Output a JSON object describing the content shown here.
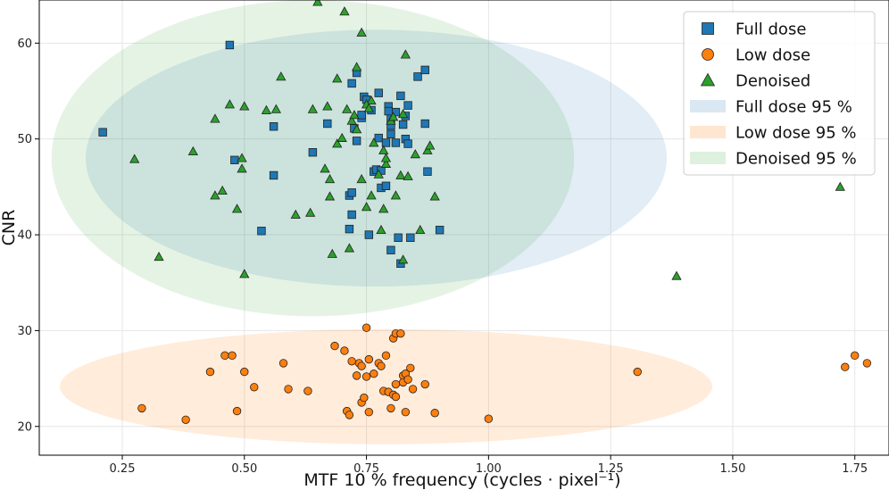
{
  "chart_data": {
    "type": "scatter",
    "xlabel": "MTF 10 % frequency (cycles · pixel⁻¹)",
    "ylabel": "CNR",
    "xlim": [
      0.08,
      1.82
    ],
    "ylim": [
      17,
      64.5
    ],
    "xticks": [
      0.25,
      0.5,
      0.75,
      1.0,
      1.25,
      1.5,
      1.75
    ],
    "xtick_labels": [
      "0.25",
      "0.50",
      "0.75",
      "1.00",
      "1.25",
      "1.50",
      "1.75"
    ],
    "yticks": [
      20,
      30,
      40,
      50,
      60
    ],
    "ytick_labels": [
      "20",
      "30",
      "40",
      "50",
      "60"
    ],
    "grid": true,
    "legend_position": "top-right",
    "series": [
      {
        "name": "Full dose",
        "marker": "square",
        "color": "#1f77b4",
        "points": [
          [
            0.21,
            50.7
          ],
          [
            0.47,
            59.8
          ],
          [
            0.48,
            47.8
          ],
          [
            0.535,
            40.4
          ],
          [
            0.56,
            51.3
          ],
          [
            0.56,
            46.2
          ],
          [
            0.64,
            48.6
          ],
          [
            0.67,
            51.6
          ],
          [
            0.715,
            44.1
          ],
          [
            0.715,
            40.6
          ],
          [
            0.72,
            42.1
          ],
          [
            0.72,
            44.4
          ],
          [
            0.725,
            51.1
          ],
          [
            0.73,
            49.8
          ],
          [
            0.74,
            52.2
          ],
          [
            0.74,
            52.5
          ],
          [
            0.745,
            54.4
          ],
          [
            0.75,
            54.1
          ],
          [
            0.76,
            53.0
          ],
          [
            0.755,
            40.0
          ],
          [
            0.765,
            46.6
          ],
          [
            0.77,
            46.8
          ],
          [
            0.775,
            54.8
          ],
          [
            0.775,
            50.1
          ],
          [
            0.78,
            44.9
          ],
          [
            0.78,
            46.7
          ],
          [
            0.79,
            49.6
          ],
          [
            0.79,
            45.1
          ],
          [
            0.795,
            53.4
          ],
          [
            0.8,
            51.4
          ],
          [
            0.8,
            52.2
          ],
          [
            0.8,
            50.5
          ],
          [
            0.81,
            49.6
          ],
          [
            0.8,
            38.4
          ],
          [
            0.81,
            52.8
          ],
          [
            0.815,
            39.7
          ],
          [
            0.82,
            54.5
          ],
          [
            0.82,
            37.0
          ],
          [
            0.825,
            51.5
          ],
          [
            0.83,
            52.4
          ],
          [
            0.83,
            50.0
          ],
          [
            0.835,
            53.5
          ],
          [
            0.835,
            49.5
          ],
          [
            0.84,
            39.7
          ],
          [
            0.855,
            56.5
          ],
          [
            0.87,
            57.2
          ],
          [
            0.87,
            51.6
          ],
          [
            0.875,
            46.6
          ],
          [
            0.9,
            40.5
          ],
          [
            0.72,
            55.8
          ],
          [
            0.73,
            56.9
          ],
          [
            0.795,
            52.9
          ]
        ]
      },
      {
        "name": "Low dose",
        "marker": "circle",
        "color": "#ff7f0e",
        "points": [
          [
            0.29,
            21.9
          ],
          [
            0.38,
            20.7
          ],
          [
            0.43,
            25.7
          ],
          [
            0.46,
            27.4
          ],
          [
            0.475,
            27.4
          ],
          [
            0.485,
            21.6
          ],
          [
            0.5,
            25.7
          ],
          [
            0.52,
            24.1
          ],
          [
            0.58,
            26.6
          ],
          [
            0.59,
            23.9
          ],
          [
            0.63,
            23.7
          ],
          [
            0.685,
            28.4
          ],
          [
            0.705,
            27.9
          ],
          [
            0.71,
            21.6
          ],
          [
            0.715,
            21.2
          ],
          [
            0.72,
            26.8
          ],
          [
            0.73,
            25.3
          ],
          [
            0.735,
            26.6
          ],
          [
            0.74,
            26.3
          ],
          [
            0.74,
            22.5
          ],
          [
            0.745,
            23.0
          ],
          [
            0.75,
            30.3
          ],
          [
            0.75,
            25.2
          ],
          [
            0.755,
            27.0
          ],
          [
            0.755,
            21.5
          ],
          [
            0.765,
            25.5
          ],
          [
            0.775,
            26.6
          ],
          [
            0.78,
            26.3
          ],
          [
            0.785,
            23.7
          ],
          [
            0.79,
            27.4
          ],
          [
            0.795,
            23.6
          ],
          [
            0.8,
            21.9
          ],
          [
            0.805,
            23.3
          ],
          [
            0.81,
            23.1
          ],
          [
            0.805,
            29.2
          ],
          [
            0.81,
            29.7
          ],
          [
            0.82,
            29.7
          ],
          [
            0.825,
            25.3
          ],
          [
            0.83,
            25.5
          ],
          [
            0.825,
            24.6
          ],
          [
            0.83,
            21.5
          ],
          [
            0.835,
            24.9
          ],
          [
            0.84,
            26.1
          ],
          [
            0.845,
            23.9
          ],
          [
            0.87,
            24.4
          ],
          [
            0.89,
            21.4
          ],
          [
            0.81,
            24.4
          ],
          [
            1.0,
            20.8
          ],
          [
            1.305,
            25.7
          ],
          [
            1.73,
            26.2
          ],
          [
            1.75,
            27.4
          ],
          [
            1.775,
            26.6
          ]
        ]
      },
      {
        "name": "Denoised",
        "marker": "triangle",
        "color": "#2ca02c",
        "points": [
          [
            0.275,
            47.9
          ],
          [
            0.325,
            37.7
          ],
          [
            0.395,
            48.7
          ],
          [
            0.44,
            44.1
          ],
          [
            0.44,
            52.1
          ],
          [
            0.455,
            44.6
          ],
          [
            0.47,
            53.6
          ],
          [
            0.485,
            42.7
          ],
          [
            0.495,
            46.9
          ],
          [
            0.495,
            48.0
          ],
          [
            0.5,
            53.4
          ],
          [
            0.5,
            35.9
          ],
          [
            0.545,
            53.0
          ],
          [
            0.565,
            53.1
          ],
          [
            0.575,
            56.5
          ],
          [
            0.605,
            42.1
          ],
          [
            0.635,
            42.3
          ],
          [
            0.64,
            53.1
          ],
          [
            0.65,
            64.3
          ],
          [
            0.665,
            46.9
          ],
          [
            0.67,
            53.4
          ],
          [
            0.675,
            44.0
          ],
          [
            0.675,
            45.8
          ],
          [
            0.68,
            38.0
          ],
          [
            0.69,
            49.5
          ],
          [
            0.69,
            56.3
          ],
          [
            0.7,
            50.1
          ],
          [
            0.705,
            63.3
          ],
          [
            0.71,
            53.1
          ],
          [
            0.715,
            38.6
          ],
          [
            0.72,
            51.9
          ],
          [
            0.725,
            52.5
          ],
          [
            0.73,
            57.5
          ],
          [
            0.73,
            51.0
          ],
          [
            0.74,
            61.1
          ],
          [
            0.74,
            45.8
          ],
          [
            0.75,
            42.9
          ],
          [
            0.76,
            44.1
          ],
          [
            0.76,
            54.0
          ],
          [
            0.765,
            49.6
          ],
          [
            0.775,
            46.3
          ],
          [
            0.785,
            48.8
          ],
          [
            0.785,
            42.7
          ],
          [
            0.78,
            40.5
          ],
          [
            0.79,
            47.4
          ],
          [
            0.8,
            51.9
          ],
          [
            0.805,
            52.3
          ],
          [
            0.81,
            44.1
          ],
          [
            0.82,
            46.2
          ],
          [
            0.825,
            37.4
          ],
          [
            0.83,
            58.8
          ],
          [
            0.835,
            46.1
          ],
          [
            0.85,
            48.4
          ],
          [
            0.86,
            40.5
          ],
          [
            0.875,
            48.8
          ],
          [
            0.88,
            49.3
          ],
          [
            0.89,
            44.0
          ],
          [
            0.75,
            53.6
          ],
          [
            0.755,
            53.2
          ],
          [
            0.79,
            48.0
          ],
          [
            1.385,
            35.7
          ],
          [
            1.72,
            45.0
          ],
          [
            0.825,
            52.6
          ]
        ]
      }
    ],
    "ellipses": [
      {
        "name": "Full dose 95 %",
        "color": "#1f77b4",
        "opacity": 0.13,
        "cx": 0.77,
        "cy": 48.0,
        "rx": 0.595,
        "ry": 13.4
      },
      {
        "name": "Low dose 95 %",
        "color": "#ff7f0e",
        "opacity": 0.15,
        "cx": 0.79,
        "cy": 24.15,
        "rx": 0.668,
        "ry": 6.0
      },
      {
        "name": "Denoised 95 %",
        "color": "#2ca02c",
        "opacity": 0.12,
        "cx": 0.64,
        "cy": 48.0,
        "rx": 0.535,
        "ry": 16.5
      }
    ]
  }
}
